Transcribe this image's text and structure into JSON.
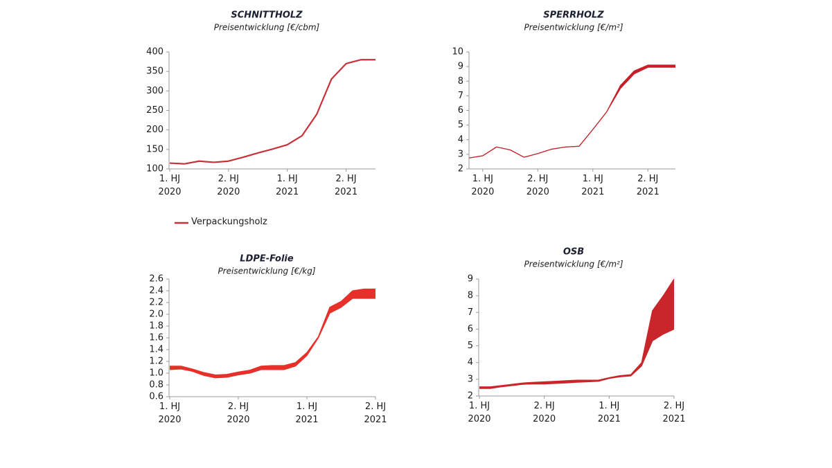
{
  "chart_data": [
    {
      "type": "line",
      "title": "SCHNITTHOLZ",
      "subtitle": "Preisentwicklung [€/cbm]",
      "categories": [
        "1. HJ\n2020",
        null,
        null,
        null,
        "2. HJ\n2020",
        null,
        null,
        null,
        "1. HJ\n2021",
        null,
        null,
        null,
        "2. HJ\n2021",
        null,
        null
      ],
      "series": [
        {
          "name": "Verpackungsholz",
          "color": "#c8303a",
          "values": [
            115,
            113,
            120,
            117,
            120,
            130,
            141,
            151,
            162,
            185,
            240,
            330,
            370,
            380,
            380
          ]
        }
      ],
      "ylim": [
        100,
        400
      ],
      "yticks": [
        100,
        150,
        200,
        250,
        300,
        350,
        400
      ]
    },
    {
      "type": "band",
      "title": "SPERRHOLZ",
      "subtitle": "Preisentwicklung [€/m²]",
      "categories": [
        null,
        "1. HJ\n2020",
        null,
        null,
        null,
        "2. HJ\n2020",
        null,
        null,
        null,
        "1. HJ\n2021",
        null,
        null,
        null,
        "2. HJ\n2021",
        null,
        null
      ],
      "color": "#c8202a",
      "low": [
        2.75,
        2.9,
        3.5,
        3.3,
        2.8,
        3.05,
        3.35,
        3.5,
        3.55,
        4.7,
        5.9,
        7.5,
        8.5,
        8.95,
        8.95,
        8.95
      ],
      "high": [
        2.75,
        2.9,
        3.5,
        3.3,
        2.8,
        3.05,
        3.35,
        3.5,
        3.55,
        4.7,
        5.9,
        7.7,
        8.7,
        9.1,
        9.1,
        9.1
      ],
      "ylim": [
        2,
        10
      ],
      "yticks": [
        2,
        3,
        4,
        5,
        6,
        7,
        8,
        9,
        10
      ]
    },
    {
      "type": "band",
      "title": "LDPE-Folie",
      "subtitle": "Preisentwicklung [€/kg]",
      "categories": [
        "1. HJ\n2020",
        null,
        null,
        null,
        null,
        null,
        "2. HJ\n2020",
        null,
        null,
        null,
        null,
        null,
        "1. HJ\n2021",
        null,
        null,
        null,
        null,
        null,
        "2. HJ\n2021"
      ],
      "color": "#e8302a",
      "low": [
        1.06,
        1.07,
        1.03,
        0.96,
        0.92,
        0.93,
        0.97,
        1.0,
        1.06,
        1.06,
        1.06,
        1.12,
        1.3,
        1.6,
        2.02,
        2.12,
        2.27,
        2.27,
        2.27
      ],
      "high": [
        1.12,
        1.12,
        1.07,
        1.01,
        0.97,
        0.98,
        1.02,
        1.05,
        1.12,
        1.13,
        1.13,
        1.18,
        1.35,
        1.62,
        2.12,
        2.22,
        2.4,
        2.43,
        2.43
      ],
      "ylim": [
        0.6,
        2.6
      ],
      "yticks": [
        0.6,
        0.8,
        {
          "value": 1,
          "label": "1.0"
        },
        1.2,
        1.4,
        1.6,
        1.8,
        {
          "value": 2,
          "label": "2.0"
        },
        2.2,
        2.4,
        2.6
      ]
    },
    {
      "type": "band",
      "title": "OSB",
      "subtitle": "Preisentwicklung [€/m²]",
      "categories": [
        "1. HJ\n2020",
        null,
        null,
        null,
        null,
        null,
        "2. HJ\n2020",
        null,
        null,
        null,
        null,
        null,
        "1. HJ\n2021",
        null,
        null,
        null,
        null,
        null,
        "2. HJ\n2021"
      ],
      "color": "#c8262a",
      "low": [
        2.45,
        2.45,
        2.55,
        2.62,
        2.7,
        2.72,
        2.72,
        2.75,
        2.78,
        2.82,
        2.85,
        2.88,
        3.05,
        3.15,
        3.2,
        3.8,
        5.3,
        5.7,
        6.0
      ],
      "high": [
        2.55,
        2.55,
        2.62,
        2.7,
        2.78,
        2.82,
        2.85,
        2.88,
        2.92,
        2.95,
        2.95,
        2.95,
        3.1,
        3.22,
        3.28,
        4.0,
        7.1,
        8.0,
        9.0
      ],
      "ylim": [
        2,
        9
      ],
      "yticks": [
        2,
        3,
        4,
        5,
        6,
        7,
        8,
        9
      ]
    }
  ]
}
